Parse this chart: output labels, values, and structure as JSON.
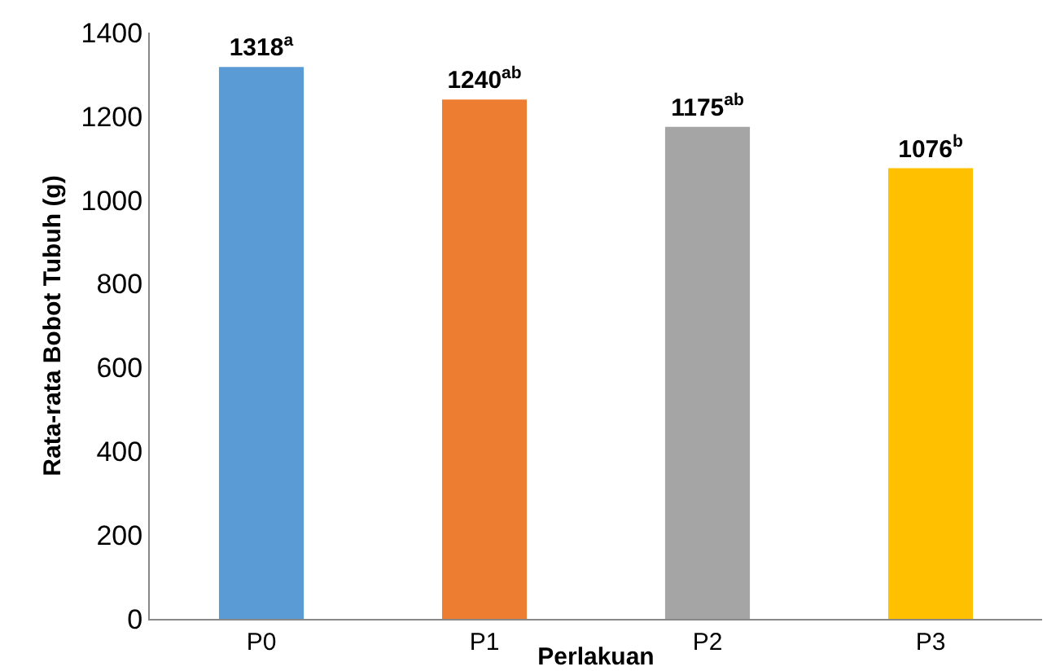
{
  "chart_data": {
    "type": "bar",
    "xlabel": "Perlakuan",
    "ylabel": "Rata-rata Bobot Tubuh (g)",
    "categories": [
      "P0",
      "P1",
      "P2",
      "P3"
    ],
    "values": [
      1318,
      1240,
      1175,
      1076
    ],
    "colors": [
      "#5b9bd5",
      "#ed7d31",
      "#a5a5a5",
      "#ffc000"
    ],
    "value_labels": [
      "1318$^{a}$",
      "1240$^{ab}$",
      "1175$^{ab}$",
      "1076$^{b}$"
    ],
    "ylim": [
      0,
      1400
    ],
    "yticks": [
      0,
      200,
      400,
      600,
      800,
      1000,
      1200,
      1400
    ],
    "grid": false
  }
}
